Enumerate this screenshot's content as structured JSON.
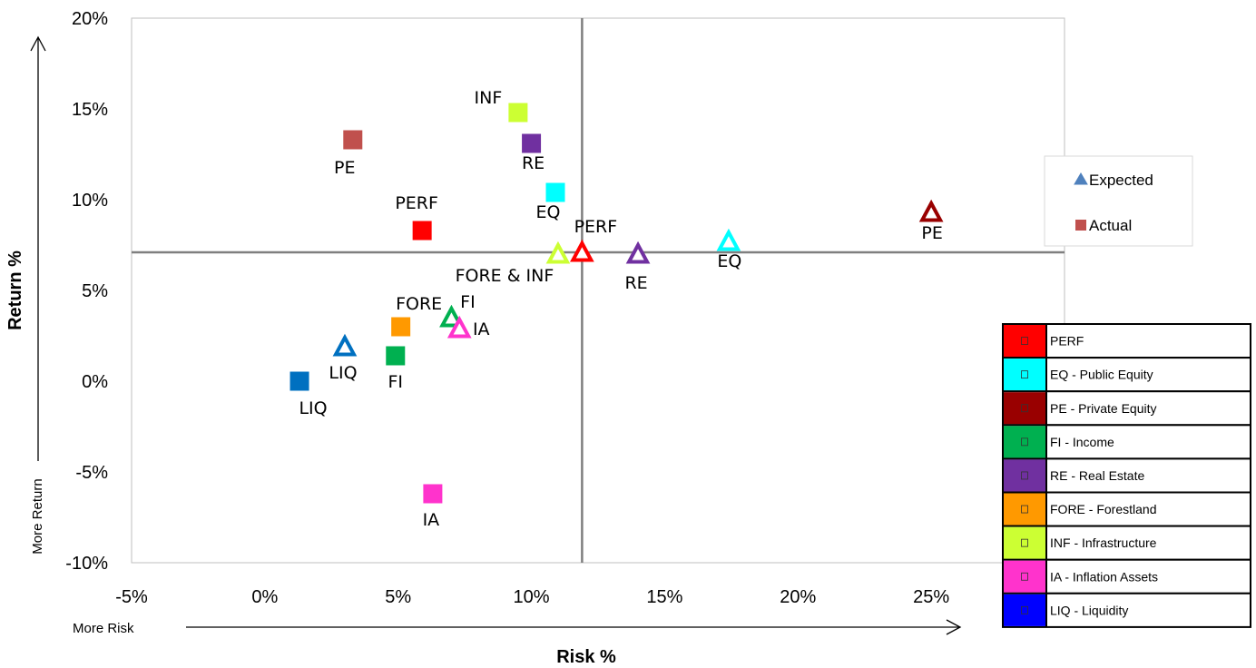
{
  "chart_data": {
    "type": "scatter",
    "title": "",
    "xlabel": "Risk %",
    "ylabel": "Return %",
    "xlim": [
      -5,
      30
    ],
    "ylim": [
      -10,
      20
    ],
    "x_ticks": [
      "-5%",
      "0%",
      "5%",
      "10%",
      "15%",
      "20%",
      "25%"
    ],
    "x_tick_values": [
      -5,
      0,
      5,
      10,
      15,
      20,
      25
    ],
    "y_ticks": [
      "20%",
      "15%",
      "10%",
      "5%",
      "0%",
      "-5%",
      "-10%"
    ],
    "y_tick_values": [
      20,
      15,
      10,
      5,
      0,
      -5,
      -10
    ],
    "grid": false,
    "reference_lines": {
      "x": 11.9,
      "y": 7.1
    },
    "annotations": {
      "more_risk": "More Risk",
      "more_return": "More Return"
    },
    "legend": {
      "placement": "right",
      "entries": [
        {
          "label": "Expected",
          "marker": "triangle",
          "color": "#4f81bd"
        },
        {
          "label": "Actual",
          "marker": "square",
          "color": "#c0504d"
        }
      ]
    },
    "series": [
      {
        "name": "Expected",
        "marker": "triangle",
        "points": [
          {
            "label": "PERF",
            "x": 11.9,
            "y": 7.1,
            "color": "#ff0000"
          },
          {
            "label": "FORE & INF",
            "x": 11.0,
            "y": 7.0,
            "color": "#ccff33"
          },
          {
            "label": "RE",
            "x": 14.0,
            "y": 7.0,
            "color": "#7030a0"
          },
          {
            "label": "EQ",
            "x": 17.4,
            "y": 7.7,
            "color": "#00ffff"
          },
          {
            "label": "PE",
            "x": 25.0,
            "y": 9.3,
            "color": "#990000"
          },
          {
            "label": "FI",
            "x": 7.0,
            "y": 3.5,
            "color": "#00b050"
          },
          {
            "label": "IA",
            "x": 7.3,
            "y": 2.9,
            "color": "#ff33cc"
          },
          {
            "label": "LIQ",
            "x": 3.0,
            "y": 1.9,
            "color": "#0070c0"
          }
        ]
      },
      {
        "name": "Actual",
        "marker": "square",
        "points": [
          {
            "label": "INF",
            "x": 9.5,
            "y": 14.8,
            "color": "#ccff33"
          },
          {
            "label": "PE",
            "x": 3.3,
            "y": 13.3,
            "color": "#c0504d"
          },
          {
            "label": "RE",
            "x": 10.0,
            "y": 13.1,
            "color": "#7030a0"
          },
          {
            "label": "EQ",
            "x": 10.9,
            "y": 10.4,
            "color": "#00ffff"
          },
          {
            "label": "PERF",
            "x": 5.9,
            "y": 8.3,
            "color": "#ff0000"
          },
          {
            "label": "FORE",
            "x": 5.1,
            "y": 3.0,
            "color": "#ff9900"
          },
          {
            "label": "FI",
            "x": 4.9,
            "y": 1.4,
            "color": "#00b050"
          },
          {
            "label": "LIQ",
            "x": 1.3,
            "y": 0.0,
            "color": "#0070c0"
          },
          {
            "label": "IA",
            "x": 6.3,
            "y": -6.2,
            "color": "#ff33cc"
          }
        ]
      }
    ],
    "key_table": [
      {
        "label": "PERF",
        "color": "#ff0000"
      },
      {
        "label": "EQ - Public Equity",
        "color": "#00ffff"
      },
      {
        "label": "PE - Private Equity",
        "color": "#990000"
      },
      {
        "label": "FI - Income",
        "color": "#00b050"
      },
      {
        "label": "RE - Real Estate",
        "color": "#7030a0"
      },
      {
        "label": "FORE - Forestland",
        "color": "#ff9900"
      },
      {
        "label": "INF - Infrastructure",
        "color": "#ccff33"
      },
      {
        "label": "IA - Inflation Assets",
        "color": "#ff33cc"
      },
      {
        "label": "LIQ - Liquidity",
        "color": "#0000ff"
      }
    ]
  }
}
